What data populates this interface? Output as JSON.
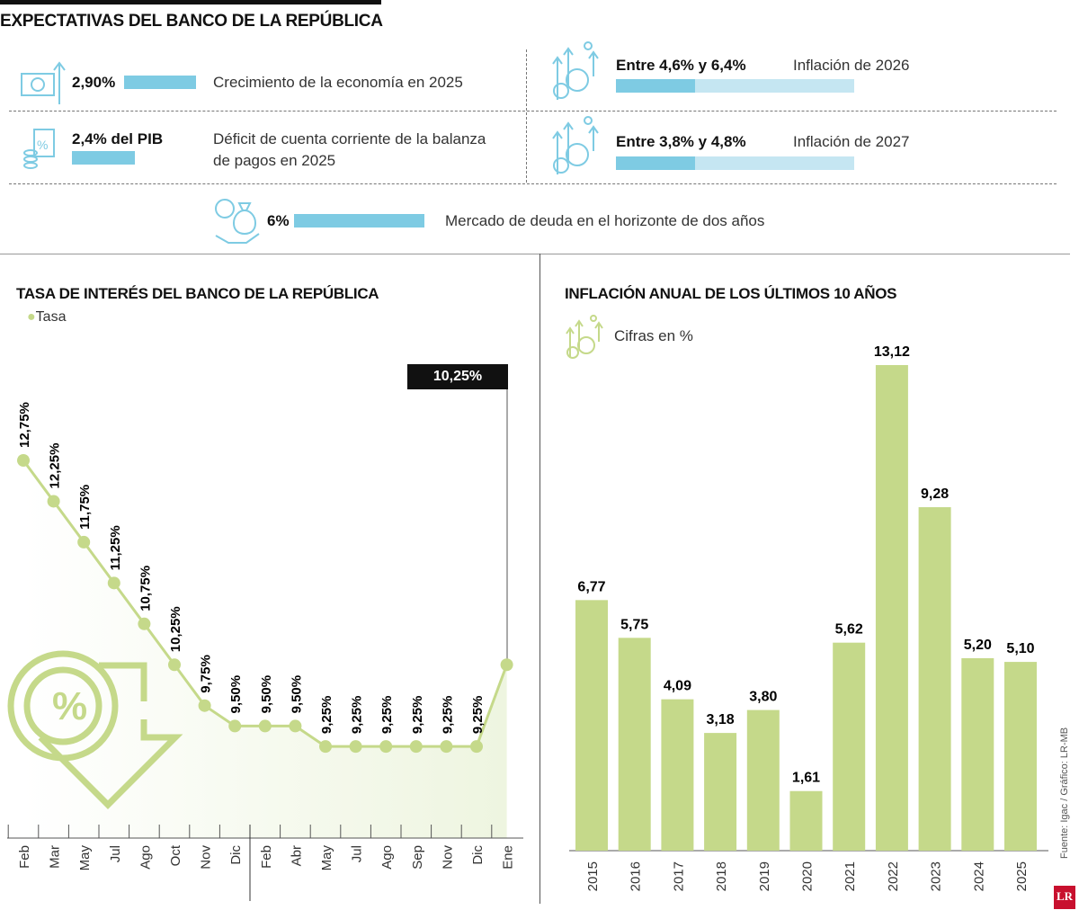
{
  "expectations": {
    "title": "EXPECTATIVAS DEL BANCO DE LA REPÚBLICA",
    "items": [
      {
        "value": "2,90%",
        "description": "Crecimiento de la economía en 2025",
        "icon": "money-growth-icon",
        "bar_value": 2.9
      },
      {
        "value": "2,4% del PIB",
        "description_line1": "Déficit de cuenta corriente de la balanza",
        "description_line2": "de pagos en 2025",
        "icon": "percent-coins-icon",
        "bar_value": 2.4
      },
      {
        "value": "Entre 4,6% y 6,4%",
        "description": "Inflación de 2026",
        "icon": "inflation-arrows-icon",
        "range": [
          4.6,
          6.4
        ]
      },
      {
        "value": "Entre 3,8% y 4,8%",
        "description": "Inflación de 2027",
        "icon": "inflation-arrows-icon",
        "range": [
          3.8,
          4.8
        ]
      },
      {
        "value": "6%",
        "description": "Mercado de deuda en el horizonte de dos años",
        "icon": "money-bag-hand-icon",
        "bar_value": 6
      }
    ],
    "color": "#7ecbe3",
    "light_color": "#c5e6f2"
  },
  "chart_data": [
    {
      "type": "line",
      "title": "TASA DE INTERÉS DEL BANCO DE LA REPÚBLICA",
      "legend": "Tasa",
      "legend_placement": "top-left",
      "categories": [
        "Feb",
        "Mar",
        "May",
        "Jul",
        "Ago",
        "Oct",
        "Nov",
        "Dic",
        "Feb",
        "Abr",
        "May",
        "Jul",
        "Ago",
        "Sep",
        "Nov",
        "Dic",
        "Ene"
      ],
      "values": [
        12.75,
        12.25,
        11.75,
        11.25,
        10.75,
        10.25,
        9.75,
        9.5,
        9.5,
        9.5,
        9.25,
        9.25,
        9.25,
        9.25,
        9.25,
        9.25,
        10.25
      ],
      "labels": [
        "12,75%",
        "12,25%",
        "11,75%",
        "11,25%",
        "10,75%",
        "10,25%",
        "9,75%",
        "9,50%",
        "9,50%",
        "9,50%",
        "9,25%",
        "9,25%",
        "9,25%",
        "9,25%",
        "9,25%",
        "9,25%"
      ],
      "highlight": "10,25%",
      "color": "#c5d98a",
      "grid": false
    },
    {
      "type": "bar",
      "title": "INFLACIÓN ANUAL DE LOS ÚLTIMOS 10 AÑOS",
      "subtitle": "Cifras en %",
      "categories": [
        "2015",
        "2016",
        "2017",
        "2018",
        "2019",
        "2020",
        "2021",
        "2022",
        "2023",
        "2024",
        "2025"
      ],
      "values": [
        6.77,
        5.75,
        4.09,
        3.18,
        3.8,
        1.61,
        5.62,
        13.12,
        9.28,
        5.2,
        5.1
      ],
      "labels": [
        "6,77",
        "5,75",
        "4,09",
        "3,18",
        "3,80",
        "1,61",
        "5,62",
        "13,12",
        "9,28",
        "5,20",
        "5,10"
      ],
      "color": "#c5d98a",
      "grid": false
    }
  ],
  "source": "Fuente: Igac / Gráfico: LR-MB",
  "logo": "LR"
}
